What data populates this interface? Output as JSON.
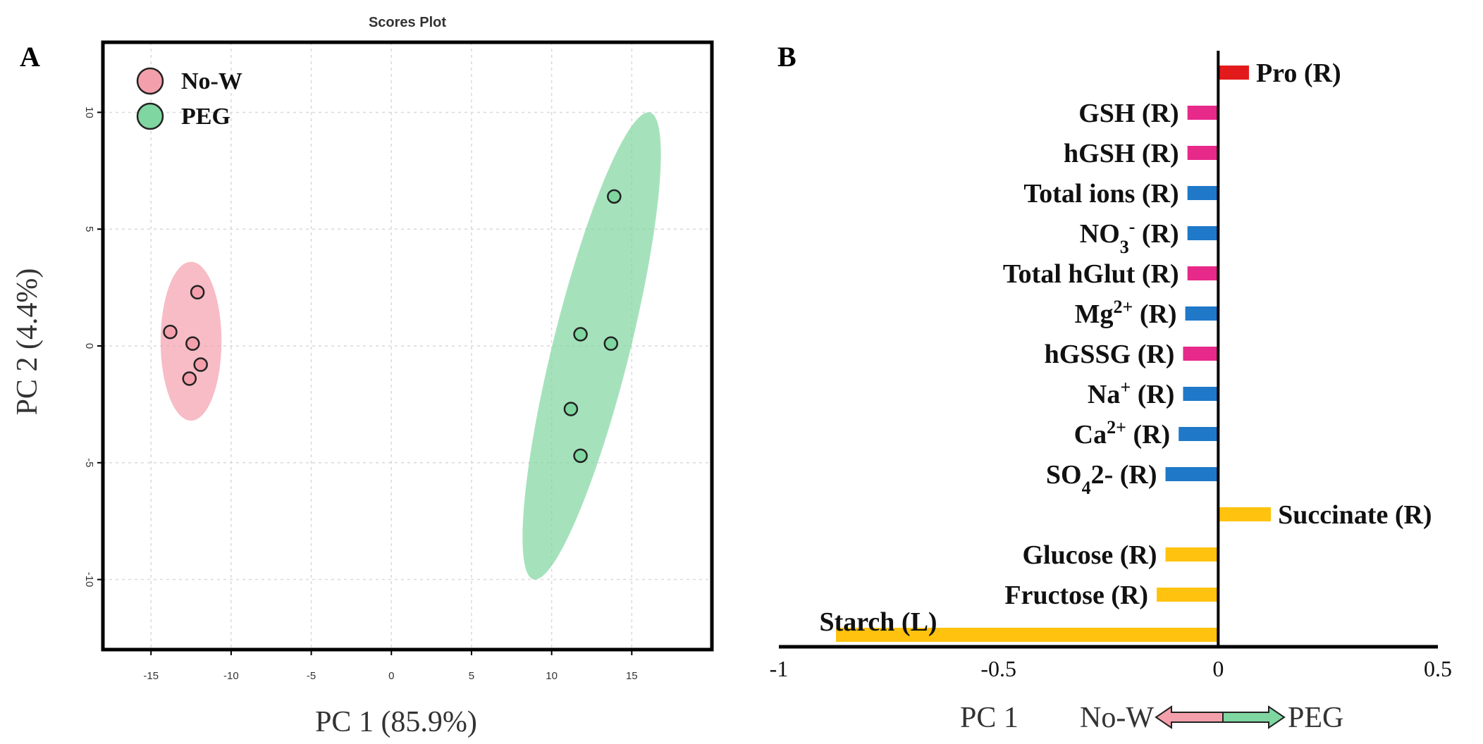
{
  "panel_a": {
    "letter": "A",
    "title": "Scores Plot",
    "xlabel": "PC 1 (85.9%)",
    "ylabel": "PC 2 (4.4%)",
    "legend": [
      {
        "label": "No-W",
        "color": "#f4a0ac"
      },
      {
        "label": "PEG",
        "color": "#7fd6a0"
      }
    ]
  },
  "panel_b": {
    "letter": "B",
    "axis_label": "PC 1",
    "direction_left": "No-W",
    "direction_right": "PEG",
    "arrow_left_color": "#f4a0ac",
    "arrow_right_color": "#7fd6a0"
  },
  "chart_data": [
    {
      "type": "scatter",
      "title": "Scores Plot",
      "xlabel": "PC 1 (85.9%)",
      "ylabel": "PC 2 (4.4%)",
      "xlim": [
        -18,
        20
      ],
      "ylim": [
        -13,
        13
      ],
      "xticks": [
        -15,
        -10,
        -5,
        0,
        5,
        10,
        15
      ],
      "yticks": [
        -10,
        -5,
        0,
        5,
        10
      ],
      "grid": true,
      "legend_position": "top-left",
      "series": [
        {
          "name": "No-W",
          "color": "#f4a0ac",
          "points": [
            [
              -12.1,
              2.3
            ],
            [
              -13.8,
              0.6
            ],
            [
              -12.4,
              0.1
            ],
            [
              -11.9,
              -0.8
            ],
            [
              -12.6,
              -1.4
            ]
          ],
          "ellipse": {
            "cx": -12.5,
            "cy": 0.2,
            "rx": 1.9,
            "ry": 3.4,
            "angle_deg": 0
          }
        },
        {
          "name": "PEG",
          "color": "#7fd6a0",
          "points": [
            [
              13.9,
              6.4
            ],
            [
              11.8,
              0.5
            ],
            [
              13.7,
              0.1
            ],
            [
              11.2,
              -2.7
            ],
            [
              11.8,
              -4.7
            ]
          ],
          "ellipse": {
            "cx": 12.5,
            "cy": 0.0,
            "rx": 2.4,
            "ry": 10.3,
            "angle_deg": 14
          }
        }
      ]
    },
    {
      "type": "bar",
      "orientation": "horizontal",
      "xlabel": "PC 1",
      "xlim": [
        -1,
        0.5
      ],
      "xticks": [
        -1,
        -0.5,
        0,
        0.5
      ],
      "xtick_labels": [
        "-1",
        "-0.5",
        "0",
        "0.5"
      ],
      "categories": [
        {
          "label": "Pro (R)",
          "value": 0.07,
          "color": "#e31a1c"
        },
        {
          "label": "GSH (R)",
          "value": -0.07,
          "color": "#e7298a"
        },
        {
          "label": "hGSH (R)",
          "value": -0.07,
          "color": "#e7298a"
        },
        {
          "label": "Total ions (R)",
          "value": -0.07,
          "color": "#1f78c8"
        },
        {
          "label": "NO3- (R)",
          "value": -0.07,
          "color": "#1f78c8"
        },
        {
          "label": "Total hGlut (R)",
          "value": -0.07,
          "color": "#e7298a"
        },
        {
          "label": "Mg2+ (R)",
          "value": -0.075,
          "color": "#1f78c8"
        },
        {
          "label": "hGSSG (R)",
          "value": -0.08,
          "color": "#e7298a"
        },
        {
          "label": "Na+ (R)",
          "value": -0.08,
          "color": "#1f78c8"
        },
        {
          "label": "Ca2+ (R)",
          "value": -0.09,
          "color": "#1f78c8"
        },
        {
          "label": "SO42- (R)",
          "value": -0.12,
          "color": "#1f78c8"
        },
        {
          "label": "Succinate (R)",
          "value": 0.12,
          "color": "#ffc20e"
        },
        {
          "label": "Glucose (R)",
          "value": -0.12,
          "color": "#ffc20e"
        },
        {
          "label": "Fructose (R)",
          "value": -0.14,
          "color": "#ffc20e"
        },
        {
          "label": "Starch (L)",
          "value": -0.87,
          "color": "#ffc20e"
        }
      ]
    }
  ]
}
